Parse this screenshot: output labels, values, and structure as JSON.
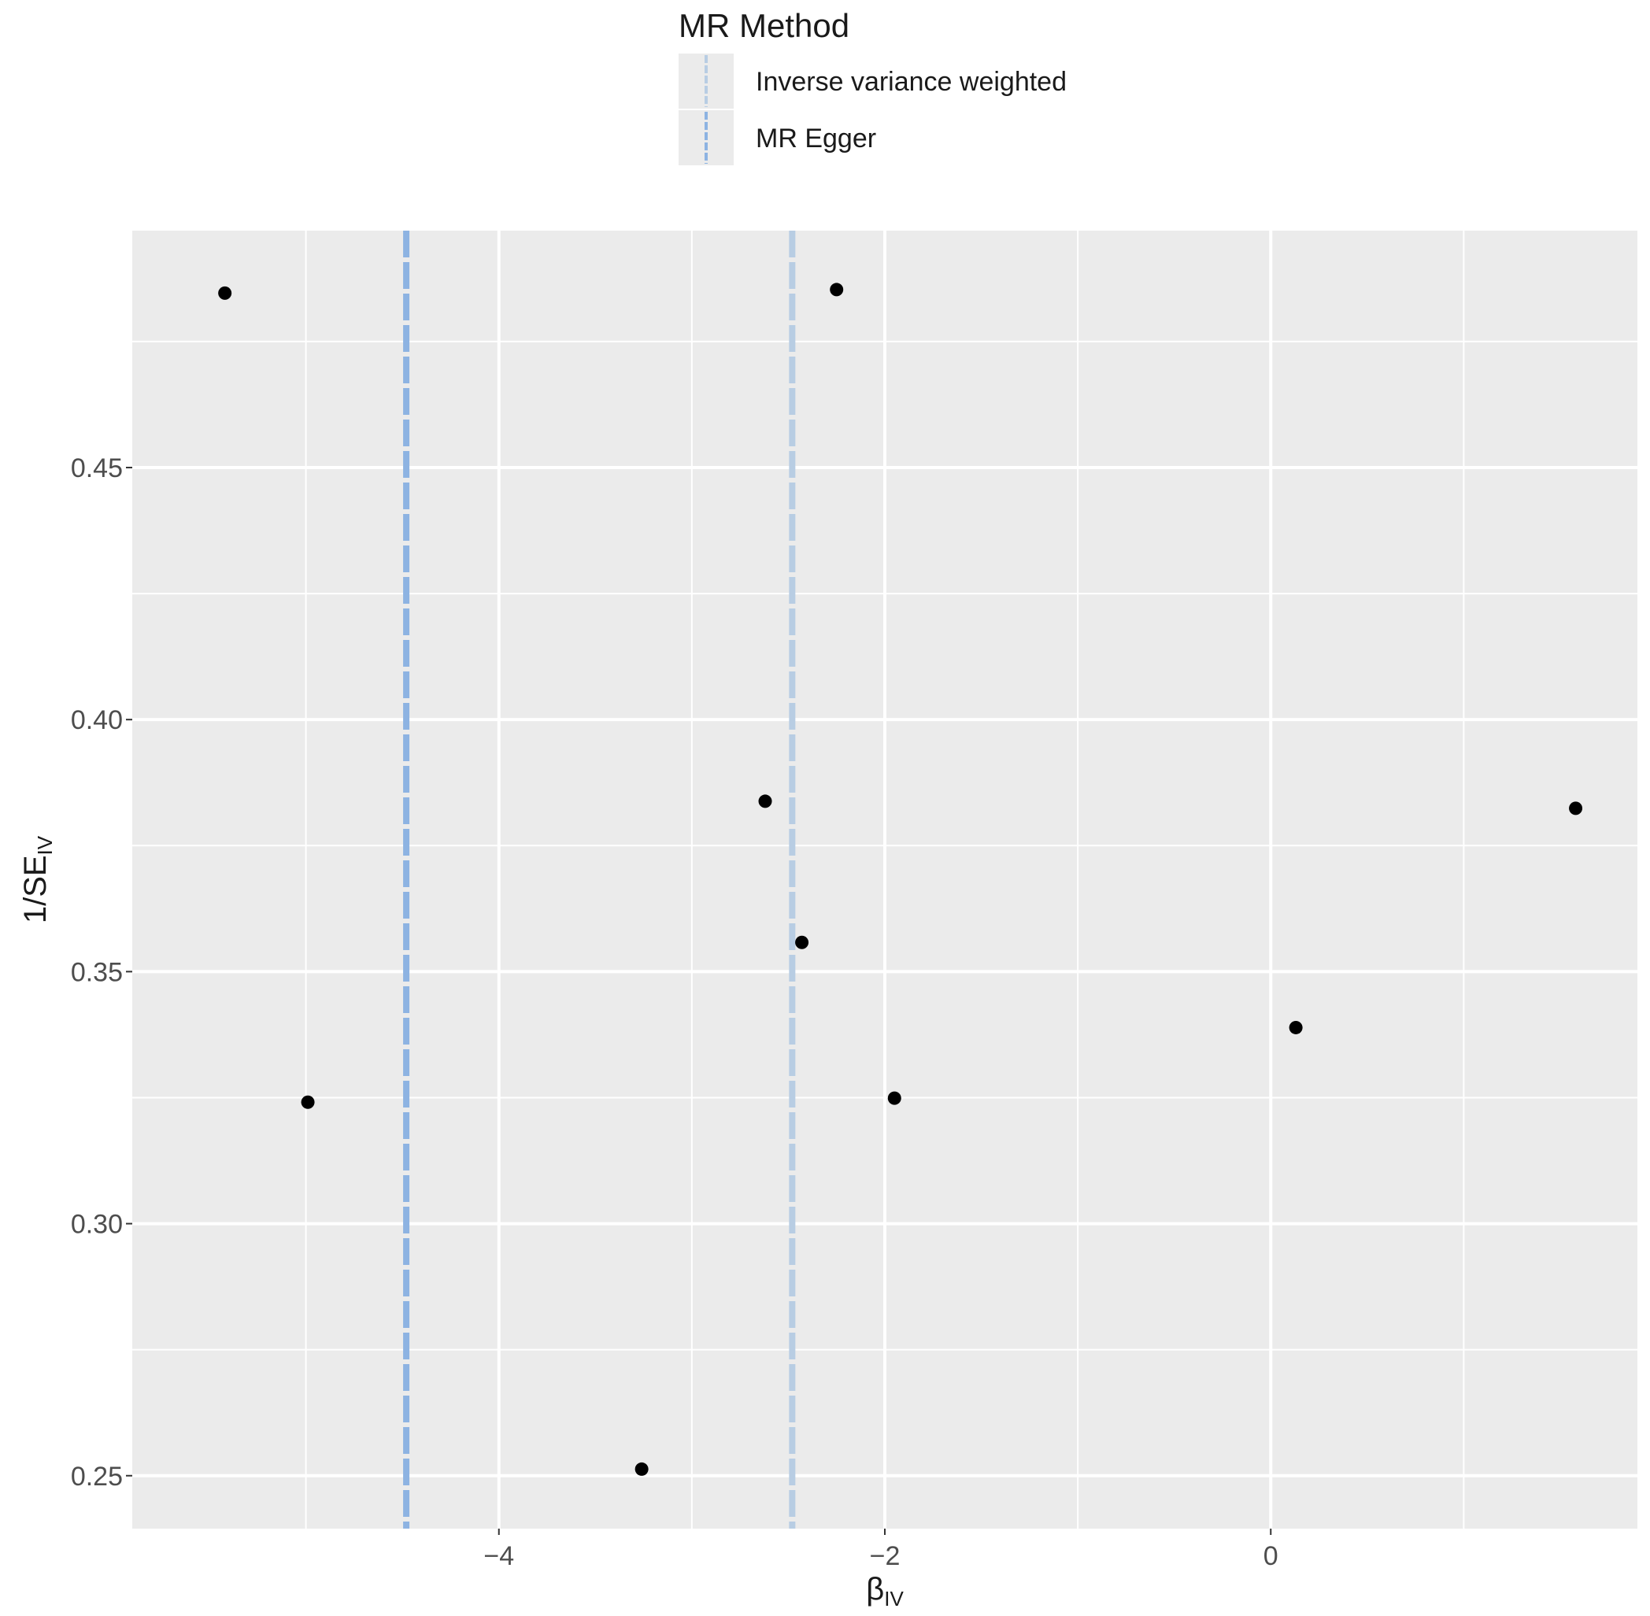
{
  "chart_data": {
    "type": "scatter",
    "title": "",
    "xlabel": "β",
    "xlabel_sub": "IV",
    "ylabel": "1/SE",
    "ylabel_sub": "IV",
    "xlim": [
      -5.9,
      1.9
    ],
    "ylim": [
      0.2395,
      0.497
    ],
    "x_ticks": [
      -4,
      -2,
      0
    ],
    "x_tick_labels": [
      "−4",
      "−2",
      "0"
    ],
    "x_minor_ticks": [
      -5,
      -3,
      -1,
      1
    ],
    "y_ticks": [
      0.25,
      0.3,
      0.35,
      0.4,
      0.45
    ],
    "y_tick_labels": [
      "0.25",
      "0.30",
      "0.35",
      "0.40",
      "0.45"
    ],
    "y_minor_ticks": [
      0.275,
      0.325,
      0.375,
      0.425,
      0.475
    ],
    "grid": true,
    "legend_position": "top",
    "legend_title": "MR Method",
    "points": [
      {
        "x": -5.42,
        "y": 0.4846
      },
      {
        "x": -4.99,
        "y": 0.3241
      },
      {
        "x": -3.26,
        "y": 0.2513
      },
      {
        "x": -2.62,
        "y": 0.3838
      },
      {
        "x": -2.43,
        "y": 0.3558
      },
      {
        "x": -2.25,
        "y": 0.4853
      },
      {
        "x": -1.95,
        "y": 0.3249
      },
      {
        "x": 0.13,
        "y": 0.3389
      },
      {
        "x": 1.58,
        "y": 0.3824
      }
    ],
    "point_color": "#000000",
    "lines": [
      {
        "name": "Inverse variance weighted",
        "type": "vertical",
        "x": -2.48,
        "color": "#b8cde3"
      },
      {
        "name": "MR Egger",
        "type": "vertical",
        "x": -4.48,
        "color": "#8db3e2"
      }
    ],
    "panel_background": "#ebebeb",
    "grid_color": "#ffffff"
  }
}
